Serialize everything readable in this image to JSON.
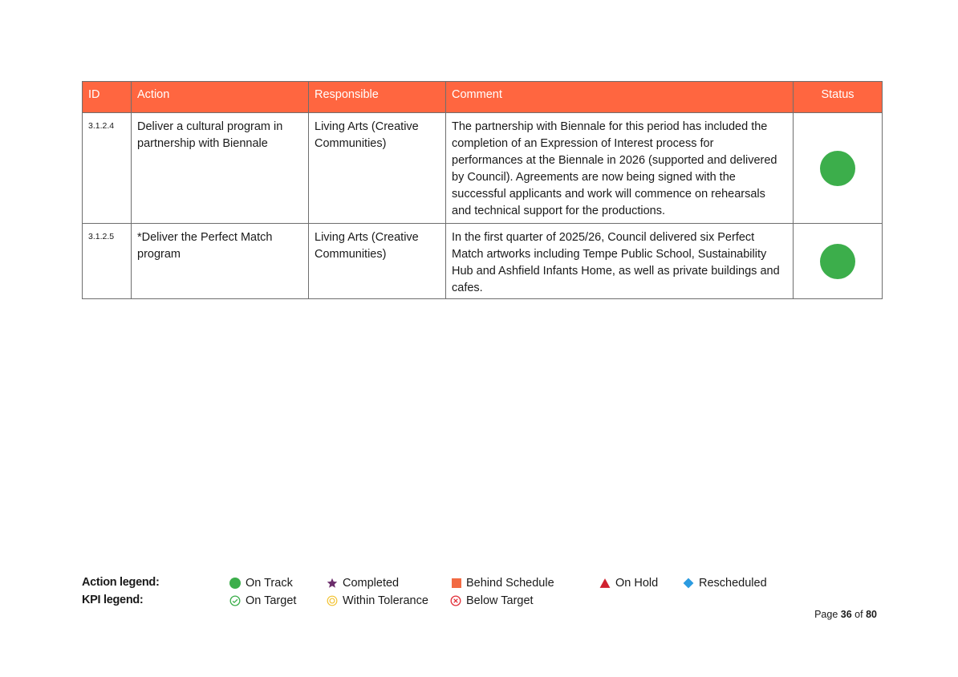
{
  "table": {
    "headers": {
      "id": "ID",
      "action": "Action",
      "responsible": "Responsible",
      "comment": "Comment",
      "status": "Status"
    },
    "rows": [
      {
        "id": "3.1.2.4",
        "action": "Deliver a cultural program in partnership with Biennale",
        "responsible": "Living Arts (Creative Communities)",
        "comment": "The partnership with Biennale for this period has included the completion of an Expression of Interest process for performances at the Biennale in 2026 (supported and delivered by Council). Agreements are now being signed with the successful applicants and work will commence on rehearsals and technical support for the productions.",
        "status": "On Track"
      },
      {
        "id": "3.1.2.5",
        "action": "*Deliver the Perfect Match program",
        "responsible": "Living Arts (Creative Communities)",
        "comment": "In the first quarter of 2025/26, Council delivered six Perfect Match artworks including Tempe Public School, Sustainability Hub and Ashfield Infants Home, as well as private buildings and cafes.",
        "status": "On Track"
      }
    ]
  },
  "legend": {
    "action_label": "Action legend:",
    "kpi_label": "KPI legend:",
    "action_items": {
      "on_track": "On Track",
      "completed": "Completed",
      "behind_schedule": "Behind Schedule",
      "on_hold": "On Hold",
      "rescheduled": "Rescheduled"
    },
    "kpi_items": {
      "on_target": "On Target",
      "within_tolerance": "Within Tolerance",
      "below_target": "Below Target"
    }
  },
  "footer": {
    "page_prefix": "Page",
    "page_current": "36",
    "page_of": "of",
    "page_total": "80"
  },
  "colors": {
    "header_bg": "#ff6640",
    "on_track": "#3cae4b",
    "completed": "#6b2d6b",
    "behind_schedule": "#f26a43",
    "on_hold": "#d0202e",
    "rescheduled": "#2b9be0",
    "within_tolerance": "#f2c230",
    "below_target": "#e2303a"
  }
}
